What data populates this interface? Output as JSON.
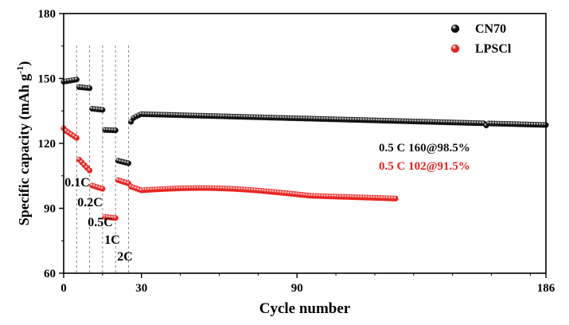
{
  "chart_data": {
    "type": "scatter",
    "xlabel": "Cycle number",
    "ylabel_main": "Specific capacity (mAh g",
    "ylabel_sup": "-1",
    "ylabel_close": ")",
    "xlim": [
      0,
      186
    ],
    "ylim": [
      60,
      180
    ],
    "xticks": [
      0,
      30,
      90,
      186
    ],
    "yticks": [
      60,
      90,
      120,
      150,
      180
    ],
    "legend_position": "top-right",
    "rate_separators_x": [
      5,
      10,
      15,
      20,
      25
    ],
    "rate_labels": [
      "0.1C",
      "0.2C",
      "0.5C",
      "1C",
      "2C"
    ],
    "series": [
      {
        "name": "CN70",
        "color": "#111111",
        "segments": [
          {
            "x": [
              0,
              5
            ],
            "y": [
              148.5,
              149.5
            ]
          },
          {
            "x": [
              6,
              10
            ],
            "y": [
              146.0,
              145.5
            ]
          },
          {
            "x": [
              11,
              15
            ],
            "y": [
              136.0,
              135.5
            ]
          },
          {
            "x": [
              16,
              20
            ],
            "y": [
              126.2,
              126.0
            ]
          },
          {
            "x": [
              21,
              25
            ],
            "y": [
              112.0,
              110.8
            ]
          },
          {
            "x": [
              26,
              186
            ],
            "y": [
              130.0,
              128.5
            ],
            "shape": "ramp",
            "peak": 133.5,
            "ramp_to": 30,
            "dip_at": 163,
            "dip_to": 128.3
          }
        ]
      },
      {
        "name": "LPSCl",
        "color": "#e8231f",
        "segments": [
          {
            "x": [
              0,
              5
            ],
            "y": [
              126.5,
              122.5
            ],
            "first_point": 127.0
          },
          {
            "x": [
              6,
              10
            ],
            "y": [
              112.5,
              107.5
            ]
          },
          {
            "x": [
              11,
              15
            ],
            "y": [
              100.5,
              99.0
            ]
          },
          {
            "x": [
              16,
              20
            ],
            "y": [
              86.0,
              85.5
            ]
          },
          {
            "x": [
              21,
              25
            ],
            "y": [
              103.0,
              101.5
            ]
          },
          {
            "x": [
              26,
              128
            ],
            "y": [
              100.0,
              94.5
            ],
            "shape": "hump",
            "hump": 99.8
          }
        ]
      }
    ],
    "annotations": [
      {
        "text": "0.5 C 160@98.5%",
        "color": "#111111"
      },
      {
        "text": "0.5 C 102@91.5%",
        "color": "#e8231f"
      }
    ]
  }
}
